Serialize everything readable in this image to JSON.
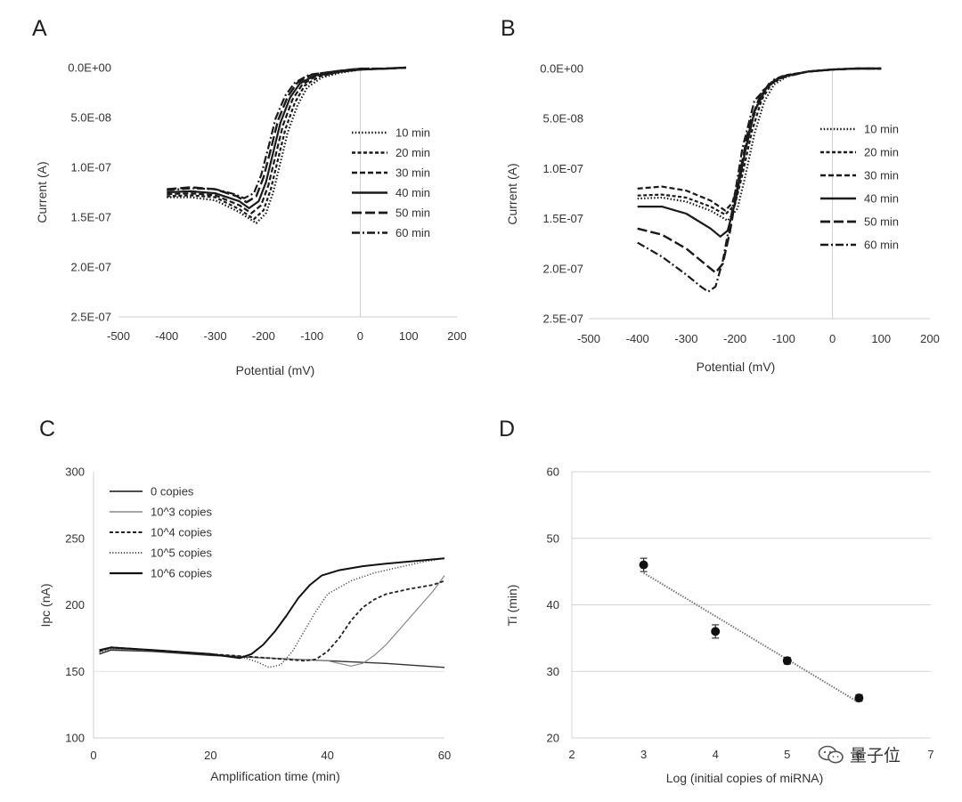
{
  "chart_data": [
    {
      "id": "A",
      "panel_label": "A",
      "type": "line",
      "xlabel": "Potential (mV)",
      "ylabel": "Current (A)",
      "xlim": [
        -500,
        200
      ],
      "ylim": [
        0,
        2.5e-07
      ],
      "y_inverted": true,
      "xticks": [
        "-500",
        "-400",
        "-300",
        "-200",
        "-100",
        "0",
        "100",
        "200"
      ],
      "yticks": [
        "0.0E+00",
        "5.0E-08",
        "1.0E-07",
        "1.5E-07",
        "2.0E-07",
        "2.5E-07"
      ],
      "legend": "right",
      "series": [
        {
          "name": "10 min",
          "style": "dotted",
          "x": [
            -400,
            -350,
            -300,
            -250,
            -215,
            -195,
            -180,
            -165,
            -150,
            -130,
            -110,
            -80,
            -40,
            0,
            50,
            95
          ],
          "y": [
            1.3e-07,
            1.3e-07,
            1.33e-07,
            1.45e-07,
            1.56e-07,
            1.46e-07,
            1.25e-07,
            9.5e-08,
            6.5e-08,
            3.8e-08,
            2e-08,
            1e-08,
            5e-09,
            2e-09,
            1e-09,
            0
          ]
        },
        {
          "name": "20 min",
          "style": "dashed-short",
          "x": [
            -400,
            -350,
            -300,
            -250,
            -220,
            -200,
            -185,
            -170,
            -155,
            -135,
            -115,
            -85,
            -40,
            0,
            50,
            95
          ],
          "y": [
            1.29e-07,
            1.28e-07,
            1.3e-07,
            1.42e-07,
            1.52e-07,
            1.43e-07,
            1.22e-07,
            9.2e-08,
            6.2e-08,
            3.5e-08,
            1.8e-08,
            9e-09,
            4e-09,
            2e-09,
            1e-09,
            0
          ]
        },
        {
          "name": "30 min",
          "style": "dashed",
          "x": [
            -400,
            -350,
            -300,
            -250,
            -225,
            -205,
            -190,
            -175,
            -160,
            -140,
            -120,
            -90,
            -40,
            0,
            50,
            95
          ],
          "y": [
            1.27e-07,
            1.26e-07,
            1.28e-07,
            1.38e-07,
            1.46e-07,
            1.38e-07,
            1.18e-07,
            8.8e-08,
            5.8e-08,
            3.2e-08,
            1.7e-08,
            8e-09,
            4e-09,
            2e-09,
            1e-09,
            0
          ]
        },
        {
          "name": "40 min",
          "style": "solid",
          "x": [
            -400,
            -350,
            -300,
            -250,
            -230,
            -210,
            -195,
            -180,
            -165,
            -145,
            -125,
            -95,
            -40,
            0,
            50,
            95
          ],
          "y": [
            1.25e-07,
            1.24e-07,
            1.26e-07,
            1.34e-07,
            1.41e-07,
            1.34e-07,
            1.15e-07,
            8.5e-08,
            5.5e-08,
            3e-08,
            1.6e-08,
            8e-09,
            4e-09,
            2e-09,
            1e-09,
            0
          ]
        },
        {
          "name": "50 min",
          "style": "long-dash",
          "x": [
            -400,
            -350,
            -300,
            -255,
            -235,
            -215,
            -200,
            -185,
            -170,
            -150,
            -130,
            -100,
            -40,
            0,
            50,
            95
          ],
          "y": [
            1.22e-07,
            1.2e-07,
            1.22e-07,
            1.29e-07,
            1.35e-07,
            1.29e-07,
            1.1e-07,
            8.2e-08,
            5.3e-08,
            2.9e-08,
            1.5e-08,
            7e-09,
            3e-09,
            1e-09,
            1e-09,
            0
          ]
        },
        {
          "name": "60 min",
          "style": "dash-dot",
          "x": [
            -400,
            -350,
            -300,
            -260,
            -240,
            -220,
            -205,
            -190,
            -175,
            -155,
            -135,
            -105,
            -40,
            0,
            50,
            95
          ],
          "y": [
            1.23e-07,
            1.21e-07,
            1.22e-07,
            1.27e-07,
            1.31e-07,
            1.26e-07,
            1.08e-07,
            8e-08,
            5.1e-08,
            2.8e-08,
            1.5e-08,
            7e-09,
            3e-09,
            1e-09,
            1e-09,
            0
          ]
        }
      ]
    },
    {
      "id": "B",
      "panel_label": "B",
      "type": "line",
      "xlabel": "Potential (mV)",
      "ylabel": "Current (A)",
      "xlim": [
        -500,
        200
      ],
      "ylim": [
        0,
        2.5e-07
      ],
      "y_inverted": true,
      "xticks": [
        "-500",
        "-400",
        "-300",
        "-200",
        "-100",
        "0",
        "100",
        "200"
      ],
      "yticks": [
        "0.0E+00",
        "5.0E-08",
        "1.0E-07",
        "1.5E-07",
        "2.0E-07",
        "2.5E-07"
      ],
      "legend": "right",
      "series": [
        {
          "name": "10 min",
          "style": "dotted",
          "x": [
            -400,
            -350,
            -300,
            -250,
            -215,
            -195,
            -180,
            -160,
            -140,
            -120,
            -90,
            -50,
            0,
            50,
            100
          ],
          "y": [
            1.3e-07,
            1.29e-07,
            1.33e-07,
            1.42e-07,
            1.52e-07,
            1.4e-07,
            1.1e-07,
            6.5e-08,
            3.3e-08,
            1.6e-08,
            7e-09,
            3e-09,
            1e-09,
            0,
            0
          ]
        },
        {
          "name": "20 min",
          "style": "dashed-short",
          "x": [
            -400,
            -350,
            -300,
            -250,
            -220,
            -200,
            -185,
            -165,
            -145,
            -125,
            -95,
            -50,
            0,
            50,
            100
          ],
          "y": [
            1.27e-07,
            1.26e-07,
            1.29e-07,
            1.38e-07,
            1.46e-07,
            1.36e-07,
            1.06e-07,
            6.2e-08,
            3.1e-08,
            1.5e-08,
            7e-09,
            3e-09,
            1e-09,
            0,
            0
          ]
        },
        {
          "name": "30 min",
          "style": "dashed",
          "x": [
            -400,
            -350,
            -300,
            -250,
            -220,
            -205,
            -190,
            -170,
            -150,
            -130,
            -100,
            -50,
            0,
            50,
            100
          ],
          "y": [
            1.2e-07,
            1.18e-07,
            1.22e-07,
            1.32e-07,
            1.42e-07,
            1.34e-07,
            1.05e-07,
            6.1e-08,
            3e-08,
            1.5e-08,
            7e-09,
            3e-09,
            1e-09,
            0,
            0
          ]
        },
        {
          "name": "40 min",
          "style": "solid",
          "x": [
            -400,
            -350,
            -300,
            -250,
            -230,
            -215,
            -200,
            -180,
            -160,
            -135,
            -105,
            -50,
            0,
            50,
            100
          ],
          "y": [
            1.38e-07,
            1.38e-07,
            1.45e-07,
            1.6e-07,
            1.68e-07,
            1.62e-07,
            1.35e-07,
            8.5e-08,
            4.3e-08,
            1.9e-08,
            8e-09,
            3e-09,
            1e-09,
            0,
            0
          ]
        },
        {
          "name": "50 min",
          "style": "long-dash",
          "x": [
            -400,
            -350,
            -300,
            -260,
            -240,
            -225,
            -210,
            -190,
            -170,
            -145,
            -110,
            -50,
            0,
            50,
            100
          ],
          "y": [
            1.6e-07,
            1.66e-07,
            1.8e-07,
            1.96e-07,
            2.04e-07,
            1.95e-07,
            1.62e-07,
            1.05e-07,
            5.5e-08,
            2.3e-08,
            9e-09,
            3e-09,
            1e-09,
            0,
            0
          ]
        },
        {
          "name": "60 min",
          "style": "dash-dot",
          "x": [
            -400,
            -350,
            -300,
            -270,
            -255,
            -240,
            -225,
            -205,
            -185,
            -160,
            -120,
            -50,
            0,
            50,
            100
          ],
          "y": [
            1.74e-07,
            1.88e-07,
            2.06e-07,
            2.18e-07,
            2.23e-07,
            2.18e-07,
            1.92e-07,
            1.4e-07,
            8e-08,
            3.2e-08,
            1.1e-08,
            3e-09,
            1e-09,
            0,
            0
          ]
        }
      ]
    },
    {
      "id": "C",
      "panel_label": "C",
      "type": "line",
      "xlabel": "Amplification time (min)",
      "ylabel": "Ipc (nA)",
      "xlim": [
        0,
        60
      ],
      "ylim": [
        100,
        300
      ],
      "xticks": [
        "0",
        "20",
        "40",
        "60"
      ],
      "yticks": [
        "100",
        "150",
        "200",
        "250",
        "300"
      ],
      "legend": "top-left",
      "series": [
        {
          "name": "0 copies",
          "style": "solid",
          "x": [
            1,
            3,
            10,
            20,
            30,
            40,
            50,
            60
          ],
          "y": [
            163,
            166,
            165,
            162,
            160,
            158,
            156,
            153
          ]
        },
        {
          "name": "10^3 copies",
          "style": "thin",
          "x": [
            1,
            3,
            10,
            20,
            30,
            40,
            42,
            44,
            46,
            48,
            50,
            52,
            54,
            56,
            58,
            60
          ],
          "y": [
            165,
            167,
            166,
            163,
            160,
            158,
            156,
            154,
            156,
            162,
            170,
            180,
            190,
            200,
            210,
            222
          ]
        },
        {
          "name": "10^4 copies",
          "style": "dashed",
          "x": [
            1,
            3,
            10,
            20,
            30,
            36,
            38,
            40,
            42,
            44,
            46,
            48,
            50,
            54,
            58,
            60
          ],
          "y": [
            165,
            168,
            166,
            163,
            160,
            158,
            159,
            165,
            175,
            188,
            198,
            204,
            208,
            212,
            215,
            218
          ]
        },
        {
          "name": "10^5 copies",
          "style": "dotted",
          "x": [
            1,
            3,
            10,
            20,
            26,
            28,
            30,
            32,
            34,
            36,
            38,
            40,
            44,
            48,
            52,
            56,
            60
          ],
          "y": [
            164,
            167,
            166,
            163,
            160,
            157,
            153,
            155,
            165,
            180,
            195,
            208,
            218,
            224,
            228,
            232,
            235
          ]
        },
        {
          "name": "10^6 copies",
          "style": "solid-bold",
          "x": [
            1,
            3,
            10,
            20,
            25,
            27,
            29,
            31,
            33,
            35,
            37,
            39,
            42,
            46,
            50,
            55,
            60
          ],
          "y": [
            166,
            168,
            166,
            163,
            160,
            163,
            170,
            180,
            192,
            205,
            215,
            222,
            226,
            229,
            231,
            233,
            235
          ]
        }
      ]
    },
    {
      "id": "D",
      "panel_label": "D",
      "type": "scatter",
      "xlabel": "Log (initial copies of miRNA)",
      "ylabel": "Ti (min)",
      "xlim": [
        2,
        7
      ],
      "ylim": [
        20,
        60
      ],
      "xticks": [
        "2",
        "3",
        "4",
        "5",
        "6",
        "7"
      ],
      "yticks": [
        "20",
        "30",
        "40",
        "50",
        "60"
      ],
      "points": [
        {
          "x": 3,
          "y": 46,
          "err": 1
        },
        {
          "x": 4,
          "y": 36,
          "err": 1
        },
        {
          "x": 5,
          "y": 31.6,
          "err": 0.5
        },
        {
          "x": 6,
          "y": 26,
          "err": 0.5
        }
      ],
      "trendline": {
        "x": [
          3,
          6
        ],
        "y": [
          44.8,
          25.3
        ],
        "style": "dotted"
      }
    }
  ],
  "watermark": {
    "text": "量子位",
    "icon": "wechat-icon"
  }
}
